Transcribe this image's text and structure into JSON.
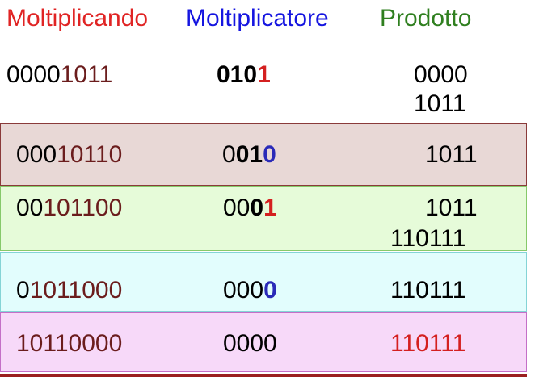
{
  "header": {
    "multiplicand": "Moltiplicando",
    "multiplier": "Moltiplicatore",
    "product": "Prodotto"
  },
  "colors": {
    "multiplicand_header": "#e02424",
    "multiplier_header": "#1515e0",
    "product_header": "#2f7f1f",
    "shifted_bits": "#6b1d1d",
    "current_bit_red": "#d42020",
    "current_bit_blue": "#2a2ab8",
    "final_product": "#d42020"
  },
  "rows": [
    {
      "multiplicand": {
        "prefix": "0000",
        "bits": "1011"
      },
      "multiplier": {
        "done": "010",
        "current": "1"
      },
      "product": [
        "0000",
        "1011"
      ]
    },
    {
      "multiplicand": {
        "prefix": "000",
        "bits": "10110"
      },
      "multiplier": {
        "done": "0",
        "middle": "01",
        "current": "0"
      },
      "product": [
        "1011"
      ]
    },
    {
      "multiplicand": {
        "prefix": "00",
        "bits": "101100"
      },
      "multiplier": {
        "done": "00",
        "middle": "0",
        "current": "1"
      },
      "product": [
        "1011",
        "110111"
      ]
    },
    {
      "multiplicand": {
        "prefix": "0",
        "bits": "1011000"
      },
      "multiplier": {
        "done": "000",
        "current": "0"
      },
      "product": [
        "110111"
      ]
    },
    {
      "multiplicand": {
        "prefix": "",
        "bits": "10110000"
      },
      "multiplier": {
        "done": "0000"
      },
      "product": [
        "110111"
      ]
    }
  ]
}
